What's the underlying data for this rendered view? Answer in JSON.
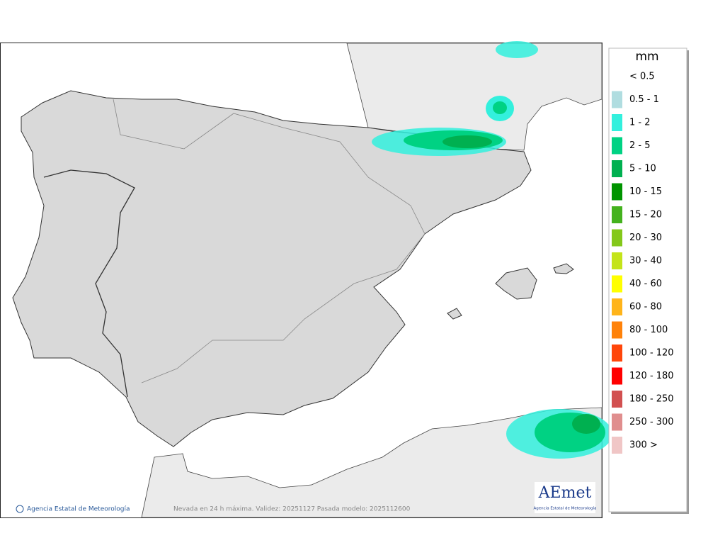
{
  "legend": {
    "title": "mm",
    "items": [
      {
        "label": "< 0.5",
        "color": null
      },
      {
        "label": "0.5 - 1",
        "color": "#b0dde0"
      },
      {
        "label": "1 - 2",
        "color": "#33f0dd"
      },
      {
        "label": "2 - 5",
        "color": "#00d283"
      },
      {
        "label": "5 - 10",
        "color": "#00b050"
      },
      {
        "label": "10 - 15",
        "color": "#009400"
      },
      {
        "label": "15 - 20",
        "color": "#44b21e"
      },
      {
        "label": "20 - 30",
        "color": "#84c81a"
      },
      {
        "label": "30 - 40",
        "color": "#c4e41a"
      },
      {
        "label": "40 - 60",
        "color": "#ffff00"
      },
      {
        "label": "60 - 80",
        "color": "#ffb41a"
      },
      {
        "label": "80 - 100",
        "color": "#ff820a"
      },
      {
        "label": "100 - 120",
        "color": "#ff460a"
      },
      {
        "label": "120 - 180",
        "color": "#ff0000"
      },
      {
        "label": "180 - 250",
        "color": "#d25050"
      },
      {
        "label": "250 - 300",
        "color": "#e08e8e"
      },
      {
        "label": "300 >",
        "color": "#f0c6c6"
      }
    ]
  },
  "credit": "Agencia Estatal de Meteorología",
  "caption": "Nevada en 24 h máxima. Validez: 20251127 Pasada modelo: 2025112600",
  "logo": {
    "name": "AEmet",
    "subtitle": "Agencia Estatal de Meteorología"
  }
}
